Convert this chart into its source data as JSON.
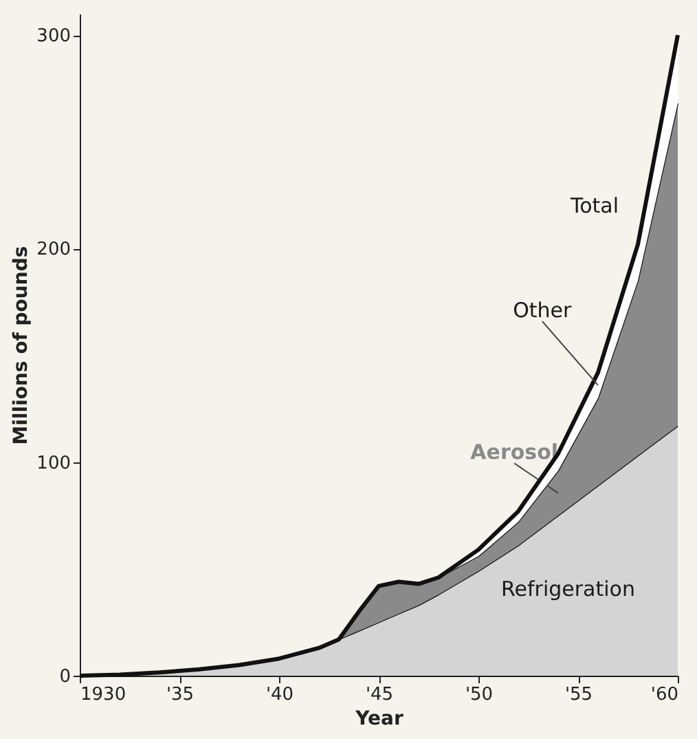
{
  "chart_data": {
    "type": "area",
    "stacked": true,
    "xlabel": "Year",
    "ylabel": "Millions of pounds",
    "x": [
      1930,
      1932,
      1934,
      1936,
      1938,
      1940,
      1942,
      1943,
      1944,
      1945,
      1946,
      1947,
      1948,
      1950,
      1952,
      1954,
      1956,
      1958,
      1960
    ],
    "xlim": [
      1930,
      1960
    ],
    "ylim": [
      0,
      310
    ],
    "xticks": [
      1930,
      {
        "value": 1935,
        "label": "'35"
      },
      {
        "value": 1940,
        "label": "'40"
      },
      {
        "value": 1945,
        "label": "'45"
      },
      {
        "value": 1950,
        "label": "'50"
      },
      {
        "value": 1955,
        "label": "'55"
      },
      {
        "value": 1960,
        "label": "'60"
      }
    ],
    "yticks": [
      0,
      100,
      200,
      300
    ],
    "grid": false,
    "series": [
      {
        "name": "Refrigeration",
        "color": "#d4d4d4",
        "values": [
          0,
          0.5,
          1.5,
          3,
          5,
          8,
          13,
          17,
          21,
          25,
          29,
          33,
          38,
          49,
          61,
          75,
          89,
          103,
          117
        ]
      },
      {
        "name": "Aerosol",
        "color": "#8a8a8a",
        "values": [
          0,
          0,
          0,
          0,
          0,
          0,
          0,
          0,
          9,
          17,
          15,
          10,
          8,
          7,
          11,
          21,
          41,
          82,
          151
        ]
      },
      {
        "name": "Other",
        "color": "#ffffff",
        "values": [
          0,
          0,
          0,
          0,
          0,
          0,
          0,
          0,
          0,
          0,
          0,
          0,
          0,
          3,
          5,
          8,
          12,
          17,
          32
        ]
      }
    ],
    "annotations": [
      {
        "text": "Total",
        "x": 1958,
        "y": 202
      }
    ]
  }
}
